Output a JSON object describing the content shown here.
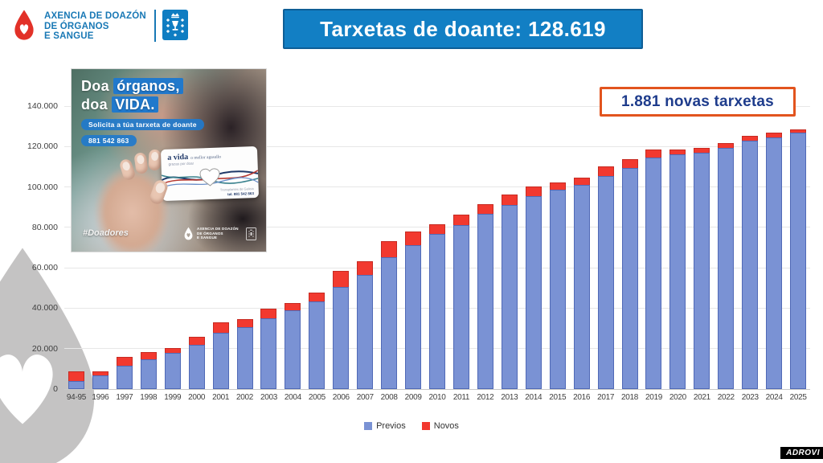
{
  "header": {
    "agency": [
      "AXENCIA DE DOAZÓN",
      "DE ÓRGANOS",
      "E SANGUE"
    ]
  },
  "banner": {
    "title": "Tarxetas de doante: 128.619"
  },
  "callout": {
    "text": "1.881 novas tarxetas"
  },
  "promo": {
    "headline_line1_plain": "Doa ",
    "headline_line1_highlight": "órganos,",
    "headline_line2_plain": "doa ",
    "headline_line2_highlight": "VIDA.",
    "subtitle_pill": "Solicita a túa tarxeta de doante",
    "phone_pill": "881 542 863",
    "card": {
      "title": "a vida",
      "title_suffix": "o mellor agasallo",
      "subtitle": "grazas por doar",
      "org_line": "Transplantes de Galicia",
      "phone_line": "tel. 881 542 863"
    },
    "hashtag": "#Doadores",
    "footer_agency": [
      "AXENCIA DE DOAZÓN",
      "DE ÓRGANOS",
      "E SANGUE"
    ]
  },
  "credit": "ADROVI",
  "colors": {
    "banner_blue": "#127fc4",
    "callout_orange": "#e2541e",
    "callout_text_navy": "#1e3c8c",
    "previos_blue": "#7a92d4",
    "novos_red": "#f2392f",
    "agency_text_blue": "#1878b5",
    "emblem_blue": "#0f7dc2",
    "drop_red": "#e23128",
    "watermark_gray": "#c4c3c3"
  },
  "chart_data": {
    "type": "bar",
    "stacked": true,
    "title": "Tarxetas de doante: 128.619",
    "annotation": "1.881 novas tarxetas",
    "categories": [
      "94-95",
      "1996",
      "1997",
      "1998",
      "1999",
      "2000",
      "2001",
      "2002",
      "2003",
      "2004",
      "2005",
      "2006",
      "2007",
      "2008",
      "2009",
      "2010",
      "2011",
      "2012",
      "2013",
      "2014",
      "2015",
      "2016",
      "2017",
      "2018",
      "2019",
      "2020",
      "2021",
      "2022",
      "2023",
      "2024",
      "2025"
    ],
    "series": [
      {
        "name": "Previos",
        "color": "#7a92d4",
        "values": [
          4000,
          6600,
          11400,
          14900,
          18100,
          22000,
          27900,
          30700,
          35000,
          38900,
          43200,
          50700,
          56600,
          65200,
          71100,
          76600,
          81000,
          86900,
          91200,
          95500,
          98600,
          101000,
          105300,
          109300,
          114400,
          116300,
          117100,
          119500,
          123000,
          124600,
          126738
        ]
      },
      {
        "name": "Novos",
        "color": "#f2392f",
        "values": [
          4700,
          2300,
          4600,
          3600,
          2000,
          3900,
          5100,
          3900,
          4600,
          3500,
          4400,
          7900,
          6700,
          7900,
          6700,
          5100,
          5200,
          4400,
          5100,
          4700,
          3600,
          3500,
          4700,
          4300,
          4300,
          2400,
          2400,
          2300,
          2400,
          2300,
          1881
        ]
      }
    ],
    "ylim": [
      0,
      140000
    ],
    "ytick_step": 20000,
    "ytick_labels": [
      "0",
      "20.000",
      "40.000",
      "60.000",
      "80.000",
      "100.000",
      "120.000",
      "140.000"
    ],
    "xlabel": "",
    "ylabel": "",
    "grid": true,
    "legend_position": "bottom"
  }
}
